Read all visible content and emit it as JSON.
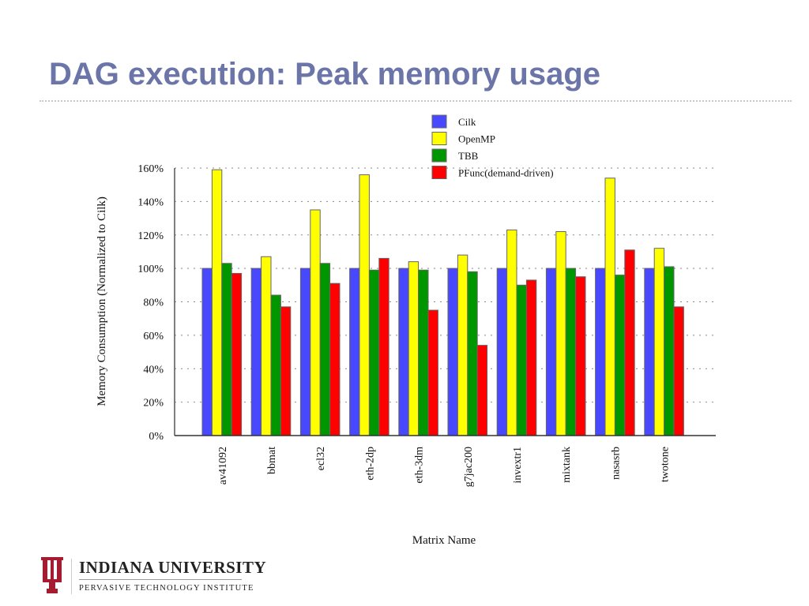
{
  "slide": {
    "title": "DAG execution: Peak memory usage",
    "logo": {
      "name": "INDIANA UNIVERSITY",
      "subtitle": "PERVASIVE TECHNOLOGY INSTITUTE"
    }
  },
  "chart_data": {
    "type": "bar",
    "title": "",
    "xlabel": "Matrix Name",
    "ylabel": "Memory Consumption (Normalized to Cilk)",
    "ylim": [
      0,
      160
    ],
    "yticks": [
      "0%",
      "20%",
      "40%",
      "60%",
      "80%",
      "100%",
      "120%",
      "140%",
      "160%"
    ],
    "grid": true,
    "legend_position": "top-right",
    "categories": [
      "av41092",
      "bbmat",
      "ecl32",
      "eth-2dp",
      "eth-3dm",
      "g7jac200",
      "invextr1",
      "mixtank",
      "nasasrb",
      "twotone"
    ],
    "series": [
      {
        "name": "Cilk",
        "color": "#4848ff",
        "values": [
          100,
          100,
          100,
          100,
          100,
          100,
          100,
          100,
          100,
          100
        ]
      },
      {
        "name": "OpenMP",
        "color": "#ffff00",
        "values": [
          159,
          107,
          135,
          156,
          104,
          108,
          123,
          122,
          154,
          112
        ]
      },
      {
        "name": "TBB",
        "color": "#009600",
        "values": [
          103,
          84,
          103,
          99,
          99,
          98,
          90,
          100,
          96,
          101
        ]
      },
      {
        "name": "PFunc(demand-driven)",
        "color": "#ff0000",
        "values": [
          97,
          77,
          91,
          106,
          75,
          54,
          93,
          95,
          111,
          77
        ]
      }
    ]
  }
}
